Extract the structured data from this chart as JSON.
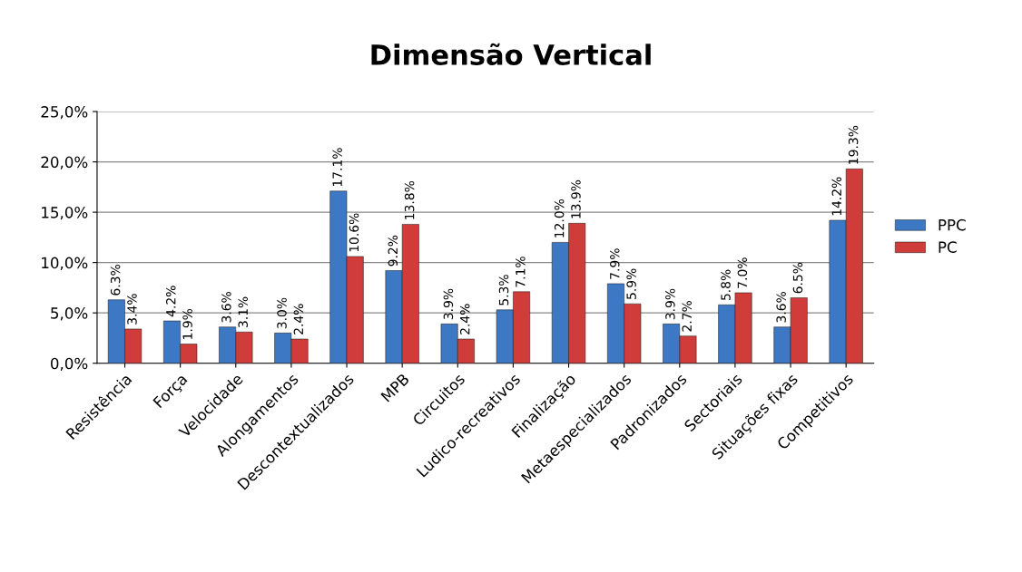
{
  "chart_data": {
    "type": "bar",
    "title": "Dimensão Vertical",
    "categories": [
      "Resistência",
      "Força",
      "Velocidade",
      "Alongamentos",
      "Descontextualizados",
      "MPB",
      "Circuitos",
      "Ludico-recreativos",
      "Finalização",
      "Metaespecializados",
      "Padronizados",
      "Sectoriais",
      "Situações fixas",
      "Competitivos"
    ],
    "series": [
      {
        "name": "PPC",
        "color": "#3c78c3",
        "values": [
          6.3,
          4.2,
          3.6,
          3.0,
          17.1,
          9.2,
          3.9,
          5.3,
          12.0,
          7.9,
          3.9,
          5.8,
          3.6,
          14.2
        ],
        "value_labels": [
          "6.3%",
          "4.2%",
          "3.6%",
          "3.0%",
          "17.1%",
          "9.2%",
          "3.9%",
          "5.3%",
          "12.0%",
          "7.9%",
          "3.9%",
          "5.8%",
          "3.6%",
          "14.2%"
        ]
      },
      {
        "name": "PC",
        "color": "#d03c3a",
        "values": [
          3.4,
          1.9,
          3.1,
          2.4,
          10.6,
          13.8,
          2.4,
          7.1,
          13.9,
          5.9,
          2.7,
          7.0,
          6.5,
          19.3
        ],
        "value_labels": [
          "3.4%",
          "1.9%",
          "3.1%",
          "2.4%",
          "10.6%",
          "13.8%",
          "2.4%",
          "7.1%",
          "13.9%",
          "5.9%",
          "2.7%",
          "7.0%",
          "6.5%",
          "19.3%"
        ]
      }
    ],
    "ylim": [
      0,
      25
    ],
    "yticks": [
      {
        "value": 0,
        "label": "0,0%"
      },
      {
        "value": 5,
        "label": "5,0%"
      },
      {
        "value": 10,
        "label": "10,0%"
      },
      {
        "value": 15,
        "label": "15,0%"
      },
      {
        "value": 20,
        "label": "20,0%"
      },
      {
        "value": 25,
        "label": "25,0%"
      }
    ],
    "grid": "y",
    "legend": "right"
  }
}
